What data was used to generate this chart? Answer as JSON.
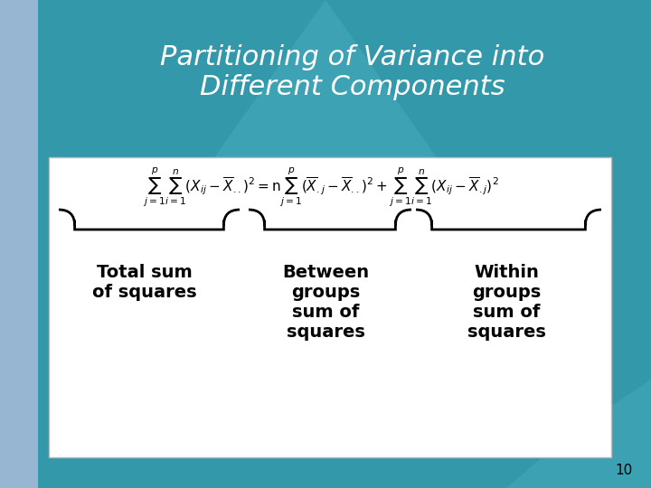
{
  "title_line1": "Partitioning of Variance into",
  "title_line2": "Different Components",
  "title_color": "#ffffff",
  "title_fontsize": 22,
  "bg_color": "#3399aa",
  "bg_light": "#5bbccc",
  "bg_lavender": "#b0bcd8",
  "slide_number": "10",
  "slide_number_color": "#000000",
  "slide_number_fontsize": 11,
  "box_facecolor": "#ffffff",
  "box_edgecolor": "#bbbbbb",
  "label1": "Total sum\nof squares",
  "label2": "Between\ngroups\nsum of\nsquares",
  "label3": "Within\ngroups\nsum of\nsquares",
  "label_fontsize": 14,
  "label_color": "#000000",
  "formula_fontsize": 11,
  "brace_color": "#000000"
}
